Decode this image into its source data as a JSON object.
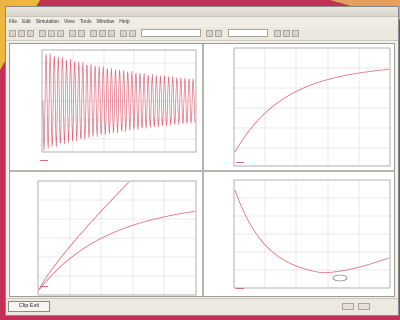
{
  "window": {
    "menu": [
      "File",
      "Edit",
      "Simulation",
      "View",
      "Tools",
      "Window",
      "Help"
    ],
    "toolbar_field": "",
    "toolbar_field2": "",
    "start_button": "Clip Exit",
    "status": {
      "left": "",
      "center": "",
      "right": ""
    },
    "mini_buttons": [
      "",
      ""
    ]
  },
  "panels": {
    "p1": {
      "legend": ""
    },
    "p2": {
      "legend": ""
    },
    "p3": {
      "title": "",
      "legend": ""
    },
    "p4": {
      "legend": ""
    }
  },
  "colors": {
    "trace": "#e26a7e",
    "grid": "#d4d4d4",
    "frame": "#8f8f8f",
    "background": "#c22f57"
  }
}
